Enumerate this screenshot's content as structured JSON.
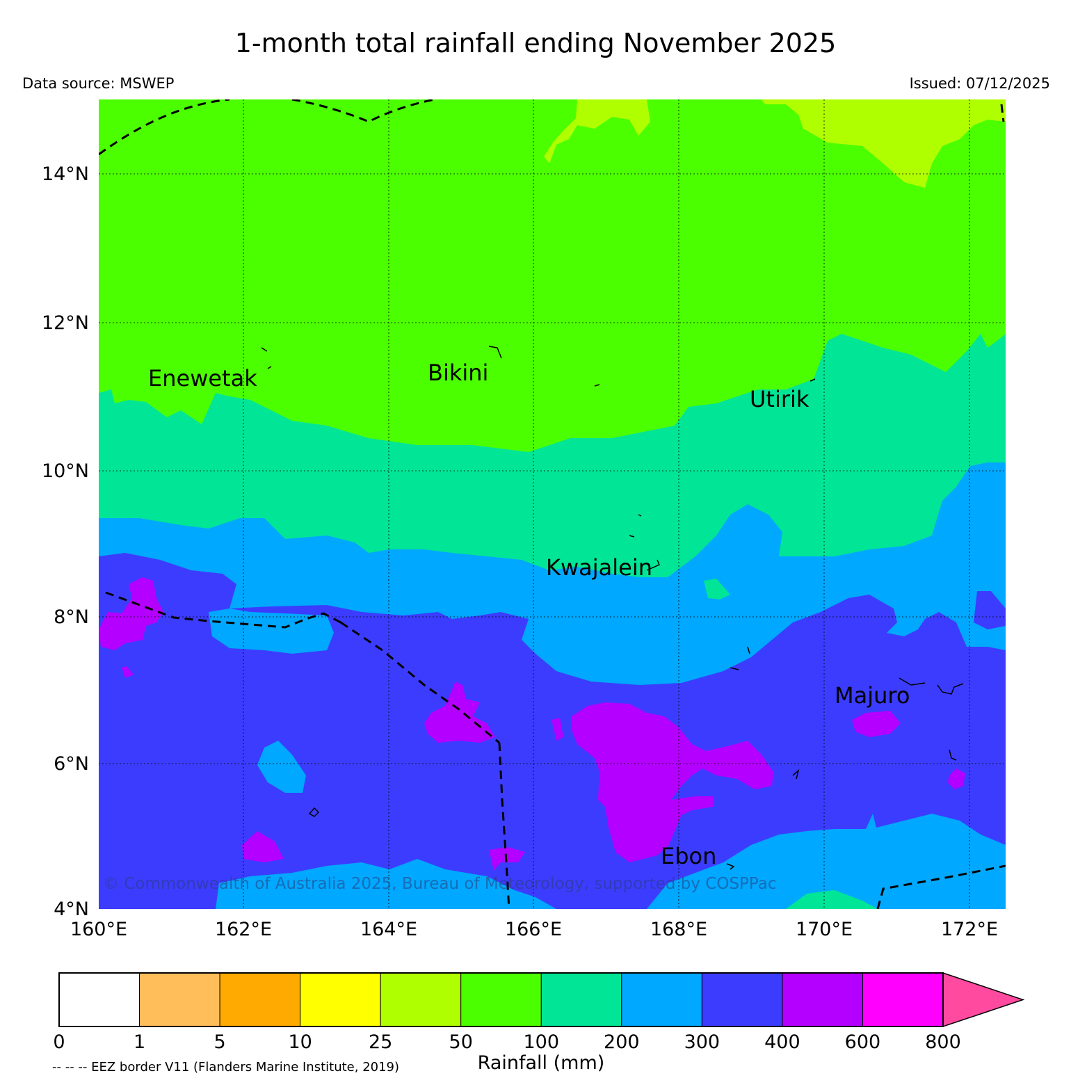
{
  "header": {
    "title": "1-month total rainfall ending November 2025",
    "data_source": "Data source: MSWEP",
    "issued": "Issued: 07/12/2025"
  },
  "map": {
    "lat_ticks": [
      "14°N",
      "12°N",
      "10°N",
      "8°N",
      "6°N",
      "4°N"
    ],
    "lon_ticks": [
      "160°E",
      "162°E",
      "164°E",
      "166°E",
      "168°E",
      "170°E",
      "172°E"
    ],
    "places": {
      "enewetak": "Enewetak",
      "bikini": "Bikini",
      "utirik": "Utirik",
      "kwajalein": "Kwajalein",
      "majuro": "Majuro",
      "ebon": "Ebon"
    },
    "copyright": "© Commonwealth of Australia 2025, Bureau of Meteorology, supported by COSPPac",
    "colors": {
      "c25_50": "#b0ff00",
      "c50_100": "#4cff00",
      "c100_200": "#00e696",
      "c200_300": "#00a8ff",
      "c300_400": "#3c3cff",
      "c400_600": "#b400ff"
    }
  },
  "colorbar": {
    "title": "Rainfall (mm)",
    "ticks": [
      "0",
      "1",
      "5",
      "10",
      "25",
      "50",
      "100",
      "200",
      "300",
      "400",
      "600",
      "800"
    ],
    "colors": [
      "#ffffff",
      "#ffbe5a",
      "#ffaa00",
      "#ffff00",
      "#b0ff00",
      "#4cff00",
      "#00e696",
      "#00a8ff",
      "#3c3cff",
      "#b400ff",
      "#ff00ff"
    ],
    "extend_color": "#ff4aa0"
  },
  "footnote": "-- -- -- EEZ border V11 (Flanders Marine Institute, 2019)"
}
